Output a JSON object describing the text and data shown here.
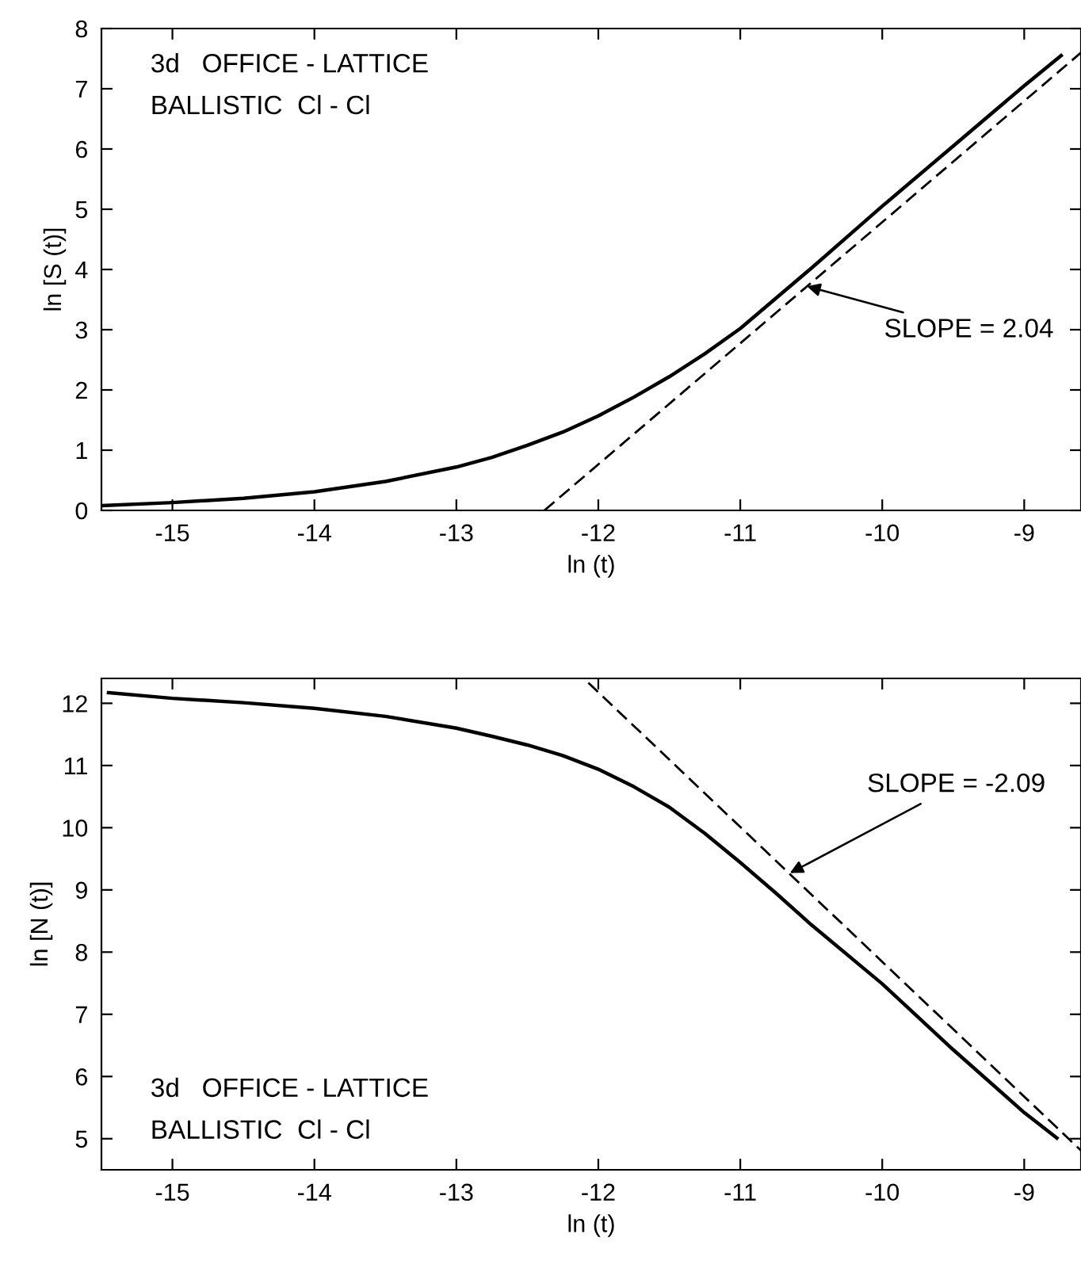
{
  "chart_data": [
    {
      "type": "line",
      "xlabel": "ln (t)",
      "ylabel": "ln [S (t)]",
      "xlim": [
        -15.5,
        -8.6
      ],
      "ylim": [
        0,
        8
      ],
      "xticks": [
        -15,
        -14,
        -13,
        -12,
        -11,
        -10,
        -9
      ],
      "yticks": [
        0,
        1,
        2,
        3,
        4,
        5,
        6,
        7,
        8
      ],
      "series": [
        {
          "color": "#000000",
          "line_style": "solid",
          "x": [
            -15.5,
            -15,
            -14.5,
            -14,
            -13.5,
            -13,
            -12.75,
            -12.5,
            -12.25,
            -12,
            -11.75,
            -11.5,
            -11.25,
            -11,
            -10.5,
            -10,
            -9.5,
            -9,
            -8.74
          ],
          "values": [
            0.08,
            0.13,
            0.2,
            0.31,
            0.48,
            0.72,
            0.88,
            1.08,
            1.3,
            1.57,
            1.88,
            2.22,
            2.6,
            3.02,
            4.02,
            5.05,
            6.05,
            7.05,
            7.55
          ]
        },
        {
          "color": "#000000",
          "line_style": "dashed",
          "x": [
            -12.38,
            -8.6
          ],
          "values": [
            0,
            7.6
          ]
        }
      ],
      "annotations": [
        "3d   OFFICE - LATTICE\nBALLISTIC  Cl - Cl",
        {
          "text": "SLOPE = 2.04",
          "x": -10.53,
          "y": 3.72
        }
      ]
    },
    {
      "type": "line",
      "xlabel": "ln (t)",
      "ylabel": "ln [N (t)]",
      "xlim": [
        -15.5,
        -8.6
      ],
      "ylim": [
        4.5,
        12.4
      ],
      "xticks": [
        -15,
        -14,
        -13,
        -12,
        -11,
        -10,
        -9
      ],
      "yticks": [
        5,
        6,
        7,
        8,
        9,
        10,
        11,
        12
      ],
      "series": [
        {
          "color": "#000000",
          "line_style": "solid",
          "x": [
            -15.45,
            -15,
            -14.5,
            -14,
            -13.5,
            -13,
            -12.75,
            -12.5,
            -12.25,
            -12,
            -11.75,
            -11.5,
            -11.25,
            -11,
            -10.75,
            -10.5,
            -10,
            -9.5,
            -9,
            -8.77
          ],
          "values": [
            12.17,
            12.08,
            12.01,
            11.92,
            11.79,
            11.6,
            11.47,
            11.33,
            11.16,
            10.94,
            10.66,
            10.33,
            9.91,
            9.44,
            8.95,
            8.44,
            7.49,
            6.43,
            5.42,
            5.01
          ]
        },
        {
          "color": "#000000",
          "line_style": "dashed",
          "x": [
            -12.07,
            -8.6
          ],
          "values": [
            12.33,
            4.81
          ]
        }
      ],
      "annotations": [
        "3d   OFFICE - LATTICE\nBALLISTIC  Cl - Cl",
        {
          "text": "SLOPE = -2.09",
          "x": -10.65,
          "y": 9.27
        }
      ]
    }
  ]
}
